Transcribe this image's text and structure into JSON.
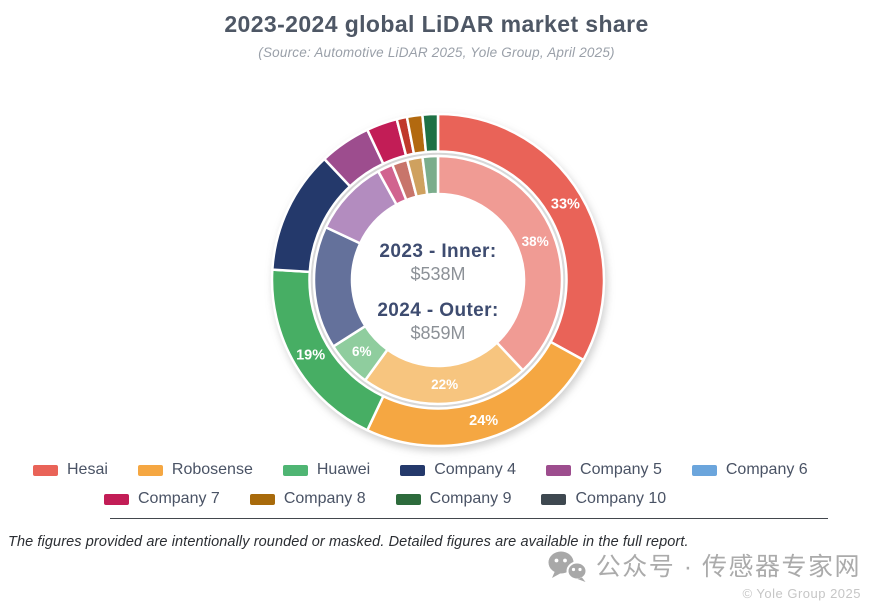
{
  "page": {
    "footnote": "The figures provided are intentionally rounded or masked. Detailed figures are available in the full report.",
    "watermark": {
      "wechat_label": "公众号 · 传感器专家网",
      "copyright": "© Yole Group 2025"
    }
  },
  "chart_data": {
    "type": "pie",
    "variant": "nested-donut",
    "title": "2023-2024 global LiDAR market share",
    "subtitle": "(Source: Automotive LiDAR 2025, Yole Group, April 2025)",
    "legend_position": "bottom",
    "center": {
      "line1_label": "2023 - Inner:",
      "line1_value": "$538M",
      "line2_label": "2024 - Outer:",
      "line2_value": "$859M"
    },
    "rings": [
      {
        "name": "2024",
        "position": "outer",
        "total_value": "$859M",
        "segments": [
          {
            "label": "Hesai",
            "value": 33,
            "pct_label": "33%",
            "color": "#E96358"
          },
          {
            "label": "Robosense",
            "value": 24,
            "pct_label": "24%",
            "color": "#F5A742"
          },
          {
            "label": "Huawei",
            "value": 19,
            "pct_label": "19%",
            "color": "#47AE64"
          },
          {
            "label": "Company 4",
            "value": 12,
            "pct_label": "",
            "color": "#24396B"
          },
          {
            "label": "Company 5",
            "value": 5,
            "pct_label": "",
            "color": "#9D4D8E"
          },
          {
            "label": "Company 7",
            "value": 3,
            "pct_label": "",
            "color": "#C21D56"
          },
          {
            "label": "Company 6",
            "value": 1,
            "pct_label": "",
            "color": "#C0392B"
          },
          {
            "label": "Company 8",
            "value": 1.5,
            "pct_label": "",
            "color": "#B2690F"
          },
          {
            "label": "Company 9",
            "value": 1.5,
            "pct_label": "",
            "color": "#1E7145"
          }
        ]
      },
      {
        "name": "2023",
        "position": "inner",
        "total_value": "$538M",
        "segments": [
          {
            "label": "Hesai",
            "value": 38,
            "pct_label": "38%",
            "color": "#F09B94"
          },
          {
            "label": "Robosense",
            "value": 22,
            "pct_label": "22%",
            "color": "#F7C57F"
          },
          {
            "label": "Huawei",
            "value": 6,
            "pct_label": "6%",
            "color": "#8FCD9E"
          },
          {
            "label": "Company 4",
            "value": 16,
            "pct_label": "",
            "color": "#64719B"
          },
          {
            "label": "Company 5",
            "value": 10,
            "pct_label": "",
            "color": "#B38CBF"
          },
          {
            "label": "Company 7",
            "value": 2,
            "pct_label": "",
            "color": "#D1638F"
          },
          {
            "label": "Company 6",
            "value": 2,
            "pct_label": "",
            "color": "#C8756B"
          },
          {
            "label": "Company 8",
            "value": 2,
            "pct_label": "",
            "color": "#CFA15F"
          },
          {
            "label": "Company 9",
            "value": 2,
            "pct_label": "",
            "color": "#7BAD8C"
          }
        ]
      }
    ],
    "legend": [
      {
        "label": "Hesai",
        "color": "#E96358"
      },
      {
        "label": "Robosense",
        "color": "#F5A742"
      },
      {
        "label": "Huawei",
        "color": "#4FB573"
      },
      {
        "label": "Company 4",
        "color": "#24396B"
      },
      {
        "label": "Company 5",
        "color": "#9D4D8E"
      },
      {
        "label": "Company 6",
        "color": "#6BA5DC"
      },
      {
        "label": "Company 7",
        "color": "#C21D56"
      },
      {
        "label": "Company 8",
        "color": "#A86A0B"
      },
      {
        "label": "Company 9",
        "color": "#2D6B3C"
      },
      {
        "label": "Company 10",
        "color": "#3E4850"
      }
    ]
  }
}
